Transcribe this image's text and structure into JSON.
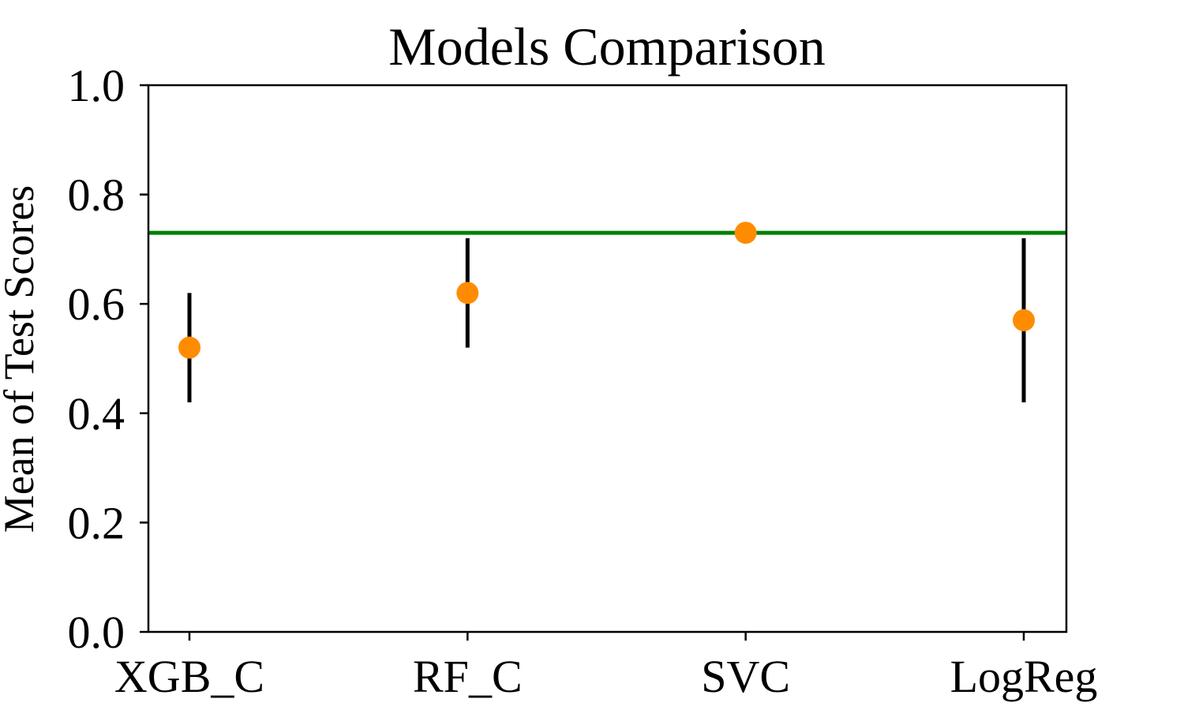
{
  "chart_data": {
    "type": "scatter",
    "title": "Models Comparison",
    "xlabel": "",
    "ylabel": "Mean of Test Scores",
    "categories": [
      "XGB_C",
      "RF_C",
      "SVC",
      "LogReg"
    ],
    "ylim": [
      0.0,
      1.0
    ],
    "yticks": [
      "0.0",
      "0.2",
      "0.4",
      "0.6",
      "0.8",
      "1.0"
    ],
    "grid": false,
    "series": [
      {
        "values": [
          0.52,
          0.62,
          0.73,
          0.57
        ],
        "error_low": [
          0.42,
          0.52,
          0.73,
          0.42
        ],
        "error_high": [
          0.62,
          0.72,
          0.73,
          0.72
        ],
        "marker_color": "#ff8c00",
        "errorbar_color": "#000000"
      }
    ],
    "reference_line": {
      "y": 0.73,
      "color": "#008000"
    }
  }
}
